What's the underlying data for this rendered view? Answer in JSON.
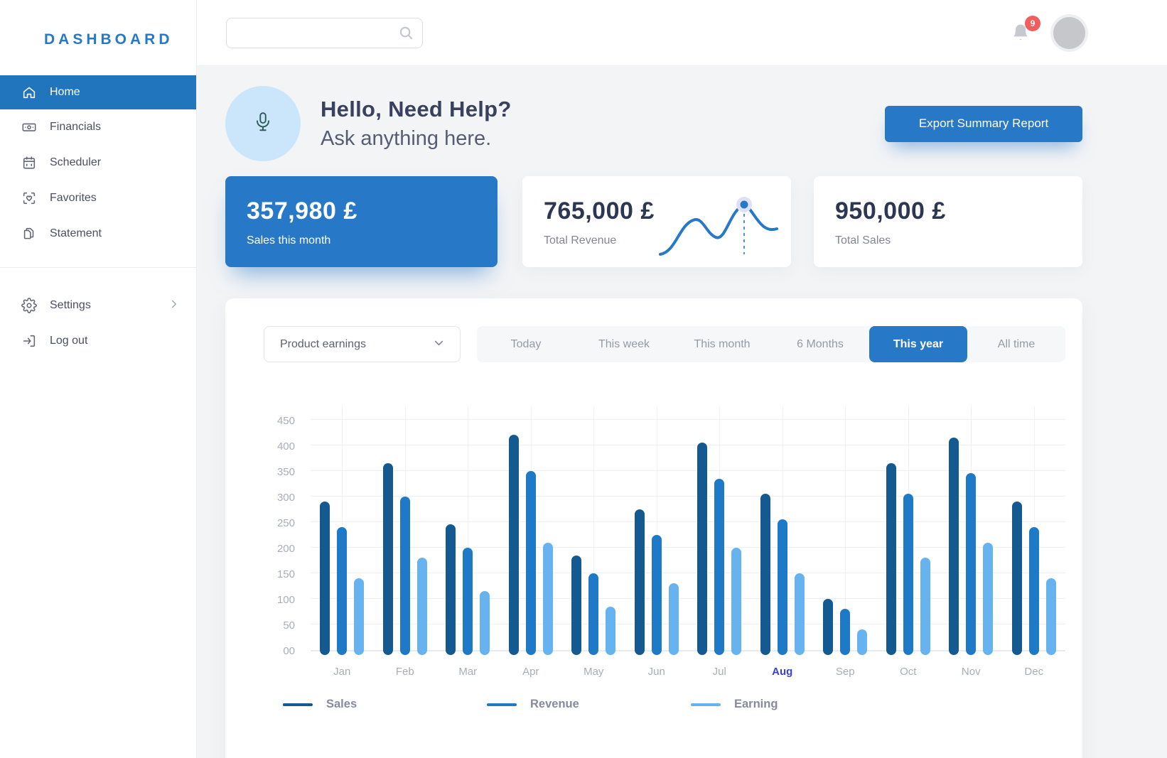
{
  "app": {
    "logo": "DASHBOARD"
  },
  "topbar": {
    "search_value": "",
    "notification_count": "9"
  },
  "sidebar": {
    "items": [
      {
        "label": "Home",
        "active": true
      },
      {
        "label": "Financials",
        "active": false
      },
      {
        "label": "Scheduler",
        "active": false
      },
      {
        "label": "Favorites",
        "active": false
      },
      {
        "label": "Statement",
        "active": false
      }
    ],
    "footer_items": [
      {
        "label": "Settings"
      },
      {
        "label": "Log out"
      }
    ]
  },
  "hero": {
    "title": "Hello, Need Help?",
    "subtitle": "Ask anything here.",
    "export_button": "Export Summary Report"
  },
  "stat_cards": [
    {
      "value": "357,980 £",
      "label": "Sales this month",
      "variant": "primary"
    },
    {
      "value": "765,000 £",
      "label": "Total Revenue",
      "variant": "sparkline"
    },
    {
      "value": "950,000 £",
      "label": "Total Sales",
      "variant": "plain"
    }
  ],
  "filters": {
    "dropdown_label": "Product earnings",
    "tabs": [
      {
        "label": "Today",
        "active": false
      },
      {
        "label": "This week",
        "active": false
      },
      {
        "label": "This month",
        "active": false
      },
      {
        "label": "6 Months",
        "active": false
      },
      {
        "label": "This year",
        "active": true
      },
      {
        "label": "All time",
        "active": false
      }
    ]
  },
  "chart_data": {
    "type": "bar",
    "categories": [
      "Jan",
      "Feb",
      "Mar",
      "Apr",
      "May",
      "Jun",
      "Jul",
      "Aug",
      "Sep",
      "Oct",
      "Nov",
      "Dec"
    ],
    "series": [
      {
        "name": "Sales",
        "color": "#14598f",
        "values": [
          300,
          375,
          255,
          430,
          195,
          285,
          415,
          315,
          110,
          375,
          425,
          300
        ]
      },
      {
        "name": "Revenue",
        "color": "#1e7ac6",
        "values": [
          250,
          310,
          210,
          360,
          160,
          235,
          345,
          265,
          90,
          315,
          355,
          250
        ]
      },
      {
        "name": "Earning",
        "color": "#67b3f0",
        "values": [
          150,
          190,
          125,
          220,
          95,
          140,
          210,
          160,
          50,
          190,
          220,
          150
        ]
      }
    ],
    "ylim": [
      0,
      450
    ],
    "ytick_labels": [
      "450",
      "400",
      "350",
      "300",
      "250",
      "200",
      "150",
      "100",
      "50",
      "00"
    ],
    "ytick_step": 50,
    "highlighted_category": "Aug",
    "grid": true,
    "legend_position": "bottom"
  },
  "colors": {
    "accent": "#2878c8",
    "sidebar_active": "#2175bd",
    "badge_red": "#f25d5d",
    "hero_circle": "#cbe6fa",
    "month_highlight": "#3a43cf"
  }
}
